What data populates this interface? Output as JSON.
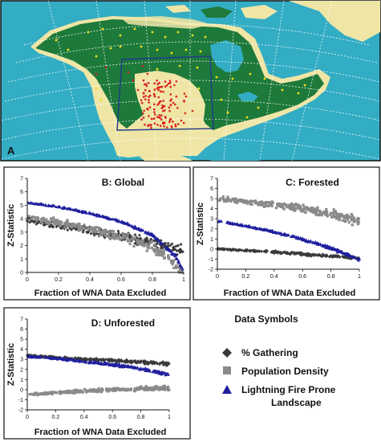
{
  "map_panel": {
    "label": "A",
    "colors": {
      "ocean": "#33adc4",
      "forest": "#1e7a3b",
      "nonforest": "#efe6a6",
      "graticule": "#ffffff",
      "study_box": "#1e3a8a",
      "yellow_point": "#f2e21a",
      "red_point": "#d92020"
    }
  },
  "panels": [
    {
      "id": "B",
      "title": "B: Global",
      "ylabel": "Z-Statistic",
      "xlabel": "Fraction of WNA Data Excluded",
      "yticks": [
        "0",
        "1",
        "2",
        "3",
        "4",
        "5",
        "6",
        "7"
      ],
      "xticks": [
        "0",
        "0.2",
        "0.4",
        "0.6",
        "0.8",
        "1"
      ]
    },
    {
      "id": "C",
      "title": "C: Forested",
      "ylabel": "Z-Statistic",
      "xlabel": "Fraction of WNA Data Excluded",
      "yticks": [
        "-2",
        "-1",
        "0",
        "1",
        "2",
        "3",
        "4",
        "5",
        "6",
        "7"
      ],
      "xticks": [
        "0",
        "0.2",
        "0.4",
        "0.6",
        "0.8",
        "1"
      ]
    },
    {
      "id": "D",
      "title": "D: Unforested",
      "ylabel": "Z-Statistic",
      "xlabel": "Fraction of WNA Data Excluded",
      "yticks": [
        "-2",
        "-1",
        "0",
        "1",
        "2",
        "3",
        "4",
        "5",
        "6",
        "7"
      ],
      "xticks": [
        "0",
        "0.2",
        "0.4",
        "0.6",
        "0.8",
        "1"
      ]
    }
  ],
  "legend": {
    "title": "Data Symbols",
    "items": [
      {
        "label": "% Gathering",
        "symbol": "diamond",
        "color": "#3a3a3a"
      },
      {
        "label": "Population Density",
        "symbol": "square",
        "color": "#8a8a8a"
      },
      {
        "label": "Lightning Fire Prone",
        "label2": "Landscape",
        "symbol": "triangle",
        "color": "#1f1f9e"
      }
    ]
  },
  "chart_data": [
    {
      "type": "scatter",
      "title": "B: Global",
      "xlabel": "Fraction of WNA Data Excluded",
      "ylabel": "Z-Statistic",
      "xlim": [
        0,
        1
      ],
      "ylim": [
        0,
        7
      ],
      "series": [
        {
          "name": "% Gathering",
          "color": "#3a3a3a",
          "marker": "diamond",
          "x": [
            0,
            0.2,
            0.4,
            0.6,
            0.8,
            0.95,
            1.0
          ],
          "y": [
            3.9,
            3.5,
            3.1,
            2.7,
            2.2,
            1.8,
            1.6
          ]
        },
        {
          "name": "Population Density",
          "color": "#8a8a8a",
          "marker": "square",
          "x": [
            0,
            0.2,
            0.4,
            0.6,
            0.8,
            0.95,
            1.0
          ],
          "y": [
            4.1,
            3.7,
            3.2,
            2.6,
            1.9,
            0.6,
            -0.3
          ]
        },
        {
          "name": "Lightning Fire Prone Landscape",
          "color": "#1f1f9e",
          "marker": "triangle",
          "x": [
            0,
            0.2,
            0.4,
            0.6,
            0.8,
            0.95,
            1.0
          ],
          "y": [
            5.2,
            4.9,
            4.4,
            3.8,
            2.8,
            1.2,
            0.1
          ]
        }
      ]
    },
    {
      "type": "scatter",
      "title": "C: Forested",
      "xlabel": "Fraction of WNA Data Excluded",
      "ylabel": "Z-Statistic",
      "xlim": [
        0,
        1
      ],
      "ylim": [
        -2,
        7
      ],
      "series": [
        {
          "name": "% Gathering",
          "color": "#3a3a3a",
          "marker": "diamond",
          "x": [
            0,
            0.2,
            0.4,
            0.6,
            0.8,
            1.0
          ],
          "y": [
            0.0,
            -0.15,
            -0.3,
            -0.5,
            -0.7,
            -0.9
          ]
        },
        {
          "name": "Population Density",
          "color": "#8a8a8a",
          "marker": "square",
          "x": [
            0,
            0.2,
            0.4,
            0.6,
            0.8,
            1.0
          ],
          "y": [
            5.0,
            4.7,
            4.4,
            4.0,
            3.5,
            2.8
          ]
        },
        {
          "name": "Lightning Fire Prone Landscape",
          "color": "#1f1f9e",
          "marker": "triangle",
          "x": [
            0,
            0.2,
            0.4,
            0.6,
            0.8,
            1.0
          ],
          "y": [
            2.8,
            2.3,
            1.7,
            1.0,
            0.1,
            -1.0
          ]
        }
      ]
    },
    {
      "type": "scatter",
      "title": "D: Unforested",
      "xlabel": "Fraction of WNA Data Excluded",
      "ylabel": "Z-Statistic",
      "xlim": [
        0,
        1
      ],
      "ylim": [
        -2,
        7
      ],
      "series": [
        {
          "name": "% Gathering",
          "color": "#3a3a3a",
          "marker": "diamond",
          "x": [
            0,
            0.2,
            0.4,
            0.6,
            0.8,
            1.0
          ],
          "y": [
            3.4,
            3.2,
            3.0,
            2.9,
            2.7,
            2.6
          ]
        },
        {
          "name": "Population Density",
          "color": "#8a8a8a",
          "marker": "square",
          "x": [
            0,
            0.2,
            0.4,
            0.6,
            0.8,
            1.0
          ],
          "y": [
            -0.5,
            -0.3,
            -0.15,
            0.0,
            0.1,
            0.2
          ]
        },
        {
          "name": "Lightning Fire Prone Landscape",
          "color": "#1f1f9e",
          "marker": "triangle",
          "x": [
            0,
            0.2,
            0.4,
            0.6,
            0.8,
            1.0
          ],
          "y": [
            3.3,
            3.1,
            2.8,
            2.5,
            2.1,
            1.5
          ]
        }
      ]
    }
  ]
}
